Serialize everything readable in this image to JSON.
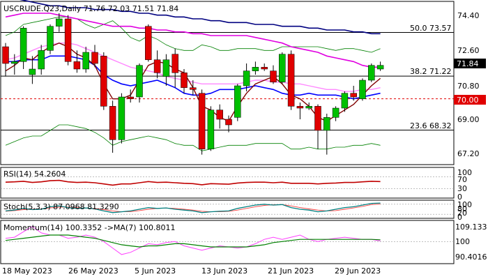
{
  "header": {
    "label": "USCRUDE.Q23,Daily  71.76 72.03 71.51 71.84"
  },
  "price_panel": {
    "y_ticks": [
      "74.40",
      "72.60",
      "70.80",
      "69.00",
      "67.20"
    ],
    "current_price": "71.84",
    "marked_level": "70.00",
    "fib_labels": [
      "50.0 73.57",
      "38.2 71.22",
      "23.6 68.32"
    ]
  },
  "rsi_panel": {
    "label": "RSI(14) 54.2604",
    "ticks": [
      "100",
      "70",
      "30",
      "0"
    ]
  },
  "stoch_panel": {
    "label": "Stoch(5,3,3) 87.0968 81.3290",
    "ticks": [
      "100",
      "80",
      "20",
      "0"
    ]
  },
  "momentum_panel": {
    "label": "Momentum(14) 100.3352  ->MA(7) 100.8011",
    "ticks": [
      "109.133",
      "100",
      "90.4016"
    ]
  },
  "x_labels": [
    "18 May 2023",
    "26 May 2023",
    "5 Jun 2023",
    "13 Jun 2023",
    "21 Jun 2023",
    "29 Jun 2023"
  ],
  "colors": {
    "bull": "#00c000",
    "bear": "#e00000",
    "navy": "#000080",
    "magenta": "#e000e0",
    "pink": "#ff88ff",
    "blue": "#0000ff",
    "darkred": "#800000",
    "green": "#008000",
    "rsi": "#c00000",
    "current_bg": "#000000",
    "level_bg": "#e00000"
  },
  "chart_data": {
    "type": "candlestick",
    "symbol": "USCRUDE.Q23",
    "timeframe": "Daily",
    "ylim": [
      66.5,
      75.2
    ],
    "candles": [
      {
        "o": 72.8,
        "h": 73.0,
        "l": 71.2,
        "c": 71.9
      },
      {
        "o": 71.9,
        "h": 72.4,
        "l": 71.3,
        "c": 72.0
      },
      {
        "o": 72.0,
        "h": 73.9,
        "l": 71.6,
        "c": 73.8
      },
      {
        "o": 71.3,
        "h": 72.3,
        "l": 70.8,
        "c": 71.6
      },
      {
        "o": 71.6,
        "h": 72.9,
        "l": 71.3,
        "c": 72.6
      },
      {
        "o": 72.6,
        "h": 74.0,
        "l": 72.4,
        "c": 73.9
      },
      {
        "o": 73.9,
        "h": 74.6,
        "l": 73.6,
        "c": 74.3
      },
      {
        "o": 74.3,
        "h": 74.5,
        "l": 71.8,
        "c": 72.0
      },
      {
        "o": 72.0,
        "h": 72.6,
        "l": 71.4,
        "c": 71.6
      },
      {
        "o": 71.6,
        "h": 72.8,
        "l": 71.4,
        "c": 72.5
      },
      {
        "o": 72.5,
        "h": 72.9,
        "l": 71.7,
        "c": 71.9
      },
      {
        "o": 72.3,
        "h": 72.5,
        "l": 69.4,
        "c": 69.6
      },
      {
        "o": 69.6,
        "h": 69.9,
        "l": 67.1,
        "c": 67.8
      },
      {
        "o": 67.8,
        "h": 70.3,
        "l": 67.6,
        "c": 70.1
      },
      {
        "o": 70.1,
        "h": 70.5,
        "l": 69.8,
        "c": 70.0
      },
      {
        "o": 70.1,
        "h": 71.9,
        "l": 69.8,
        "c": 71.8
      },
      {
        "o": 73.9,
        "h": 74.0,
        "l": 72.0,
        "c": 72.1
      },
      {
        "o": 72.1,
        "h": 72.6,
        "l": 71.1,
        "c": 71.4
      },
      {
        "o": 71.2,
        "h": 72.4,
        "l": 70.7,
        "c": 72.1
      },
      {
        "o": 72.4,
        "h": 72.7,
        "l": 70.6,
        "c": 71.4
      },
      {
        "o": 71.4,
        "h": 71.6,
        "l": 70.3,
        "c": 70.6
      },
      {
        "o": 70.6,
        "h": 71.0,
        "l": 70.2,
        "c": 70.5
      },
      {
        "o": 70.3,
        "h": 70.5,
        "l": 67.0,
        "c": 67.3
      },
      {
        "o": 67.3,
        "h": 69.6,
        "l": 67.2,
        "c": 69.4
      },
      {
        "o": 69.4,
        "h": 69.7,
        "l": 68.4,
        "c": 68.9
      },
      {
        "o": 68.9,
        "h": 69.1,
        "l": 68.2,
        "c": 68.6
      },
      {
        "o": 69.0,
        "h": 70.8,
        "l": 68.8,
        "c": 70.7
      },
      {
        "o": 70.7,
        "h": 71.9,
        "l": 70.4,
        "c": 71.5
      },
      {
        "o": 71.5,
        "h": 72.0,
        "l": 71.3,
        "c": 71.7
      },
      {
        "o": 71.7,
        "h": 71.9,
        "l": 71.5,
        "c": 71.6
      },
      {
        "o": 71.5,
        "h": 71.8,
        "l": 70.8,
        "c": 70.9
      },
      {
        "o": 70.9,
        "h": 72.5,
        "l": 70.8,
        "c": 72.4
      },
      {
        "o": 72.4,
        "h": 72.6,
        "l": 69.4,
        "c": 69.6
      },
      {
        "o": 69.6,
        "h": 69.8,
        "l": 68.9,
        "c": 69.5
      },
      {
        "o": 69.5,
        "h": 69.8,
        "l": 69.4,
        "c": 69.6
      },
      {
        "o": 69.6,
        "h": 69.7,
        "l": 67.3,
        "c": 68.3
      },
      {
        "o": 68.3,
        "h": 69.2,
        "l": 67.0,
        "c": 69.0
      },
      {
        "o": 69.0,
        "h": 69.6,
        "l": 68.8,
        "c": 69.5
      },
      {
        "o": 69.5,
        "h": 70.4,
        "l": 69.3,
        "c": 70.3
      },
      {
        "o": 70.3,
        "h": 70.7,
        "l": 69.9,
        "c": 70.1
      },
      {
        "o": 70.0,
        "h": 71.1,
        "l": 69.9,
        "c": 71.0
      },
      {
        "o": 71.0,
        "h": 71.9,
        "l": 70.9,
        "c": 71.8
      },
      {
        "o": 71.6,
        "h": 72.0,
        "l": 71.5,
        "c": 71.8
      }
    ],
    "indicators": {
      "ma_navy": [
        75.4,
        75.4,
        75.3,
        75.2,
        75.1,
        75.0,
        75.0,
        74.9,
        74.9,
        74.9,
        74.8,
        74.8,
        74.8,
        74.7,
        74.7,
        74.6,
        74.6,
        74.5,
        74.5,
        74.4,
        74.4,
        74.3,
        74.3,
        74.2,
        74.2,
        74.1,
        74.1,
        74.1,
        74.0,
        74.0,
        74.0,
        73.9,
        73.9,
        73.9,
        73.8,
        73.8,
        73.7,
        73.7,
        73.7,
        73.6,
        73.6,
        73.5,
        73.5
      ],
      "ma_magenta": [
        74.4,
        74.5,
        74.6,
        74.6,
        74.6,
        74.6,
        74.5,
        74.4,
        74.3,
        74.2,
        74.1,
        74.0,
        73.9,
        73.9,
        73.9,
        73.8,
        73.8,
        73.7,
        73.7,
        73.6,
        73.6,
        73.5,
        73.5,
        73.4,
        73.4,
        73.4,
        73.4,
        73.4,
        73.3,
        73.2,
        73.1,
        73.0,
        72.8,
        72.7,
        72.6,
        72.5,
        72.3,
        72.2,
        72.1,
        72.0,
        71.8,
        71.7,
        71.7
      ],
      "ma_pink": [
        72.1,
        72.2,
        72.4,
        72.6,
        72.8,
        72.9,
        73.0,
        73.0,
        72.9,
        72.7,
        72.5,
        72.3,
        72.1,
        71.9,
        71.7,
        71.6,
        71.5,
        71.4,
        71.2,
        71.1,
        71.0,
        70.9,
        70.8,
        70.8,
        70.8,
        70.8,
        70.8,
        70.9,
        71.0,
        71.0,
        70.9,
        70.9,
        70.8,
        70.8,
        70.7,
        70.6,
        70.5,
        70.5,
        70.4,
        70.4,
        70.5,
        70.5,
        70.6
      ],
      "ma_blue": [
        72.0,
        72.0,
        72.1,
        72.1,
        72.1,
        72.3,
        72.3,
        72.3,
        72.2,
        72.1,
        71.8,
        71.3,
        71.0,
        70.8,
        70.7,
        70.8,
        70.9,
        71.0,
        70.8,
        70.6,
        70.3,
        70.2,
        70.2,
        70.3,
        70.5,
        70.5,
        70.5,
        70.6,
        70.7,
        70.6,
        70.5,
        70.3,
        70.2,
        70.2,
        70.3,
        70.2,
        70.2,
        70.2,
        70.1,
        70.0,
        70.1,
        70.2,
        70.3
      ],
      "ma_darkred": [
        71.5,
        71.8,
        72.2,
        72.1,
        72.5,
        72.8,
        73.0,
        72.8,
        72.4,
        72.2,
        71.8,
        70.8,
        70.0,
        70.0,
        70.2,
        71.0,
        71.8,
        72.0,
        71.9,
        71.6,
        71.4,
        70.6,
        69.6,
        69.4,
        69.0,
        68.8,
        69.6,
        70.3,
        70.8,
        71.0,
        71.2,
        70.8,
        70.2,
        70.0,
        69.6,
        69.0,
        68.8,
        69.1,
        69.4,
        69.7,
        70.2,
        70.7,
        71.1
      ],
      "bb_upper": [
        73.4,
        73.6,
        74.0,
        74.1,
        74.2,
        74.3,
        74.4,
        74.4,
        74.3,
        74.0,
        73.8,
        74.0,
        74.2,
        73.8,
        73.3,
        73.1,
        73.4,
        73.2,
        72.9,
        72.7,
        72.6,
        72.6,
        72.9,
        72.8,
        72.6,
        72.6,
        72.7,
        72.7,
        72.7,
        72.6,
        72.6,
        72.8,
        72.8,
        72.8,
        72.8,
        72.8,
        72.7,
        72.6,
        72.7,
        72.7,
        72.6,
        72.5,
        72.7
      ],
      "bb_lower": [
        67.5,
        67.7,
        67.9,
        68.0,
        68.0,
        68.3,
        68.6,
        68.6,
        68.5,
        68.4,
        68.2,
        67.9,
        67.5,
        67.7,
        67.8,
        67.9,
        68.0,
        67.9,
        67.8,
        67.6,
        67.5,
        67.5,
        67.2,
        67.3,
        67.4,
        67.5,
        67.5,
        67.5,
        67.6,
        67.6,
        67.6,
        67.6,
        67.3,
        67.3,
        67.4,
        67.3,
        67.3,
        67.4,
        67.4,
        67.5,
        67.5,
        67.6,
        67.5
      ],
      "rsi": [
        52,
        53,
        55,
        51,
        53,
        57,
        58,
        53,
        51,
        52,
        50,
        46,
        42,
        46,
        46,
        50,
        54,
        51,
        52,
        50,
        48,
        47,
        43,
        47,
        46,
        45,
        49,
        51,
        52,
        52,
        50,
        52,
        48,
        48,
        48,
        46,
        48,
        49,
        51,
        51,
        53,
        55,
        54
      ],
      "stoch_k": [
        40,
        45,
        55,
        48,
        50,
        65,
        70,
        60,
        55,
        58,
        52,
        40,
        30,
        35,
        40,
        50,
        60,
        55,
        58,
        50,
        45,
        40,
        30,
        35,
        38,
        40,
        55,
        65,
        75,
        80,
        75,
        78,
        60,
        50,
        45,
        35,
        40,
        50,
        60,
        65,
        75,
        85,
        87
      ],
      "stoch_d": [
        38,
        42,
        48,
        50,
        52,
        58,
        63,
        63,
        60,
        57,
        55,
        48,
        40,
        35,
        36,
        42,
        50,
        55,
        57,
        55,
        50,
        45,
        38,
        35,
        35,
        38,
        45,
        55,
        65,
        73,
        77,
        78,
        70,
        60,
        52,
        45,
        40,
        42,
        50,
        58,
        67,
        78,
        81
      ],
      "momentum": [
        101.5,
        102,
        104.5,
        107,
        104,
        103,
        103,
        101.5,
        102,
        103,
        102,
        100,
        97,
        94,
        95,
        97,
        99,
        98.5,
        99.5,
        100,
        98,
        97,
        96,
        97,
        98,
        97.5,
        97,
        97.5,
        99,
        101,
        102,
        101,
        102,
        103,
        101,
        100,
        101,
        101.5,
        102,
        101.5,
        101,
        101,
        100.3
      ],
      "momentum_ma": [
        100.5,
        101,
        101.5,
        102,
        102.5,
        103,
        103,
        103,
        102.5,
        102,
        101.5,
        100.5,
        99.5,
        98.5,
        98,
        97.5,
        98,
        98,
        98.5,
        99,
        99,
        98.5,
        98,
        97.5,
        97.5,
        97.5,
        97.5,
        97.5,
        98,
        98.5,
        99.5,
        100,
        100.5,
        101,
        101,
        101,
        101,
        101,
        101,
        101,
        101,
        101,
        100.8
      ]
    },
    "levels": {
      "fib_50": 73.57,
      "fib_38_2": 71.22,
      "fib_23_6": 68.32,
      "marked": 70.0
    }
  }
}
